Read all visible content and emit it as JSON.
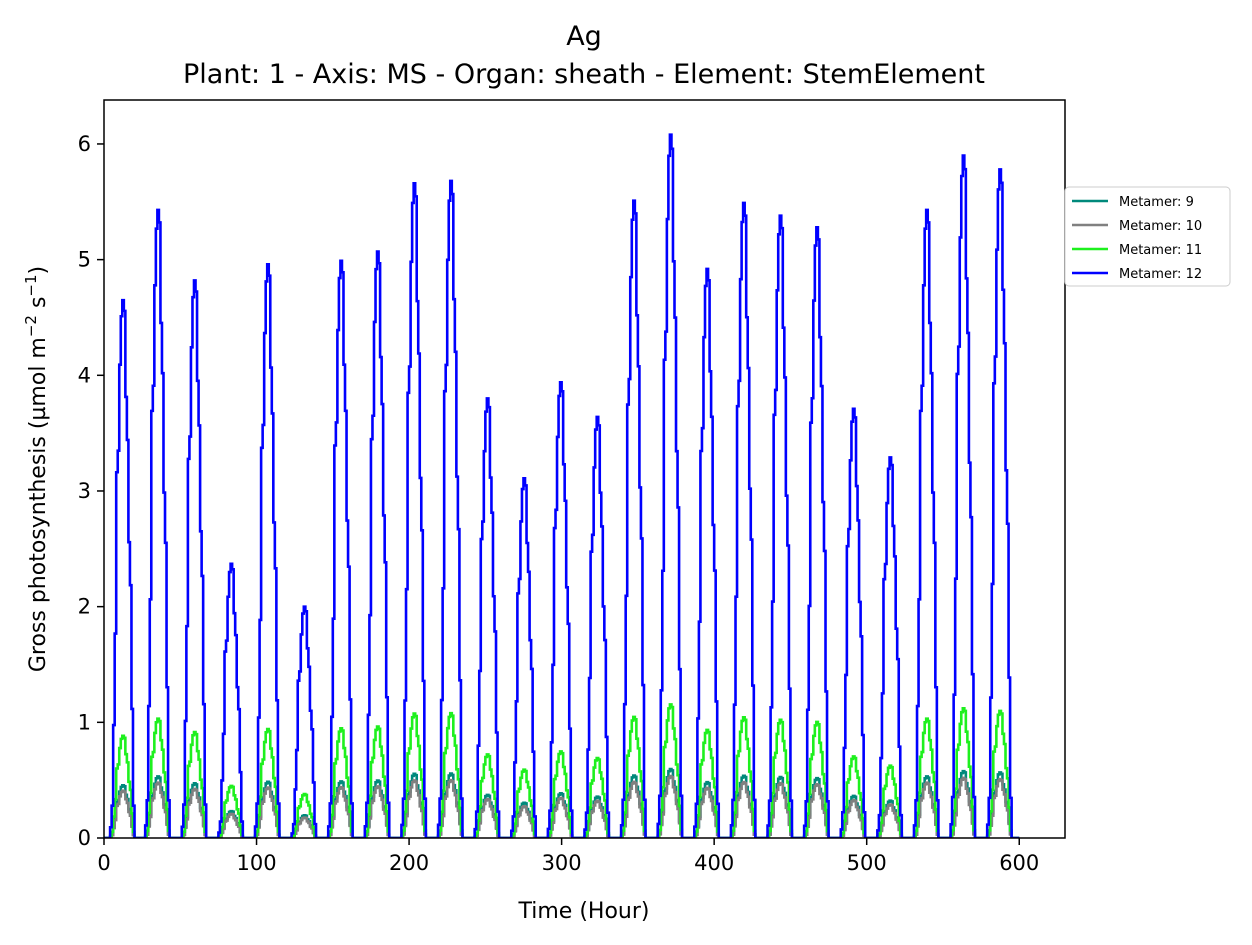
{
  "chart_data": {
    "type": "line",
    "title": "Ag",
    "subtitle": "Plant: 1 - Axis: MS - Organ: sheath - Element: StemElement",
    "xlabel": "Time (Hour)",
    "ylabel": "Gross photosynthesis (µmol m",
    "ylabel_exp1": "−2",
    "ylabel_mid": " s",
    "ylabel_exp2": "−1",
    "ylabel_end": ")",
    "xlim": [
      0,
      630
    ],
    "ylim": [
      0,
      6.38
    ],
    "xticks": [
      0,
      100,
      200,
      300,
      400,
      500,
      600
    ],
    "yticks": [
      0,
      1,
      2,
      3,
      4,
      5,
      6
    ],
    "grid": false,
    "legend_position": "outside-right",
    "day_shape": [
      0,
      0.02,
      0.06,
      0.21,
      0.38,
      0.68,
      0.72,
      0.88,
      0.97,
      1.0,
      0.98,
      0.82,
      0.74,
      0.55,
      0.47,
      0.24,
      0.06,
      0.0
    ],
    "days": [
      {
        "start": 3,
        "peak": 4.65
      },
      {
        "start": 26,
        "peak": 5.43
      },
      {
        "start": 50,
        "peak": 4.82
      },
      {
        "start": 74,
        "peak": 2.37
      },
      {
        "start": 98,
        "peak": 4.96
      },
      {
        "start": 122,
        "peak": 2.0
      },
      {
        "start": 146,
        "peak": 4.99
      },
      {
        "start": 170,
        "peak": 5.07
      },
      {
        "start": 194,
        "peak": 5.66
      },
      {
        "start": 218,
        "peak": 5.68
      },
      {
        "start": 242,
        "peak": 3.8
      },
      {
        "start": 266,
        "peak": 3.11
      },
      {
        "start": 290,
        "peak": 3.94
      },
      {
        "start": 314,
        "peak": 3.64
      },
      {
        "start": 338,
        "peak": 5.51
      },
      {
        "start": 362,
        "peak": 6.08
      },
      {
        "start": 386,
        "peak": 4.92
      },
      {
        "start": 410,
        "peak": 5.49
      },
      {
        "start": 434,
        "peak": 5.38
      },
      {
        "start": 458,
        "peak": 5.28
      },
      {
        "start": 482,
        "peak": 3.71
      },
      {
        "start": 506,
        "peak": 3.29
      },
      {
        "start": 530,
        "peak": 5.43
      },
      {
        "start": 554,
        "peak": 5.9
      },
      {
        "start": 578,
        "peak": 5.78
      }
    ],
    "series": [
      {
        "name": "Metamer: 9",
        "color": "#00897b",
        "ratio": 0.098
      },
      {
        "name": "Metamer: 10",
        "color": "#808080",
        "ratio": 0.088
      },
      {
        "name": "Metamer: 11",
        "color": "#1ef01e",
        "ratio": 0.19
      },
      {
        "name": "Metamer: 12",
        "color": "#0000ff",
        "ratio": 1.0
      }
    ]
  }
}
